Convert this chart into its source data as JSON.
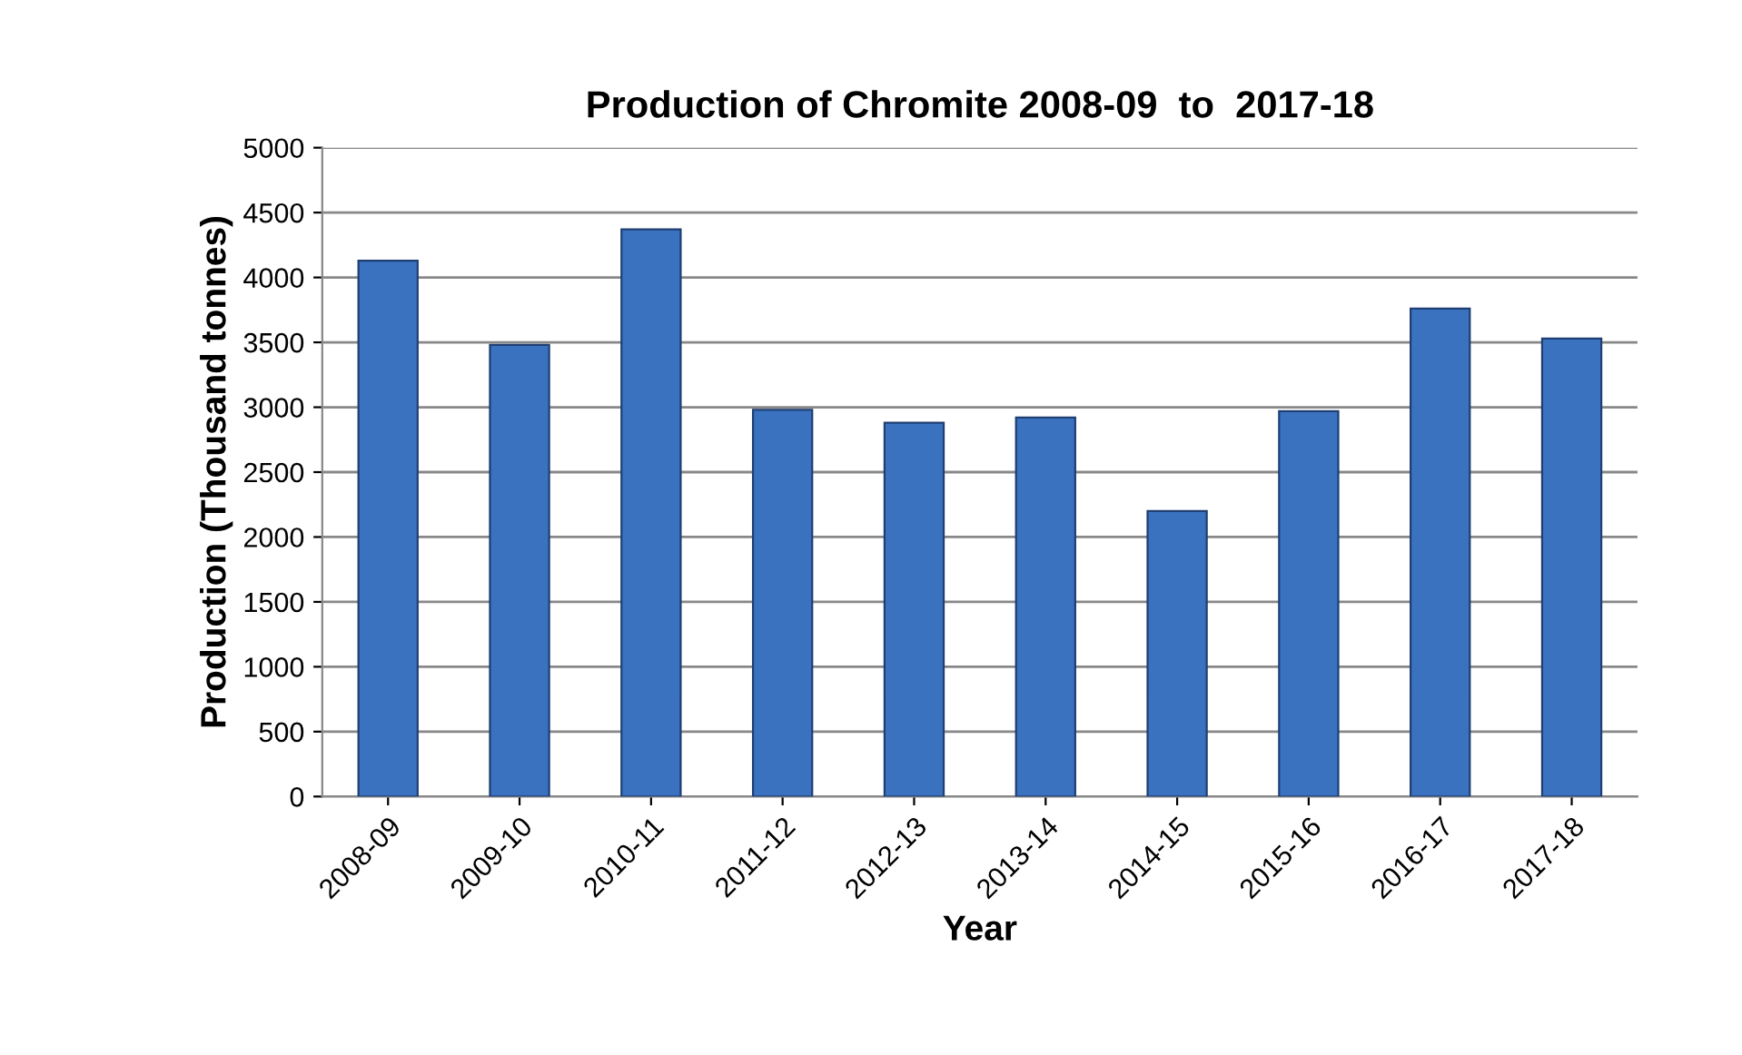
{
  "chart_data": {
    "type": "bar",
    "title": "Production of Chromite 2008-09  to  2017-18",
    "xlabel": "Year",
    "ylabel": "Production (Thousand tonnes)",
    "categories": [
      "2008-09",
      "2009-10",
      "2010-11",
      "2011-12",
      "2012-13",
      "2013-14",
      "2014-15",
      "2015-16",
      "2016-17",
      "2017-18"
    ],
    "values": [
      4130,
      3480,
      4370,
      2980,
      2880,
      2920,
      2200,
      2970,
      3760,
      3530
    ],
    "color": "#3a72c0",
    "ylim": [
      0,
      5000
    ],
    "yticks": [
      0,
      500,
      1000,
      1500,
      2000,
      2500,
      3000,
      3500,
      4000,
      4500,
      5000
    ],
    "grid": "y",
    "legend": false
  }
}
